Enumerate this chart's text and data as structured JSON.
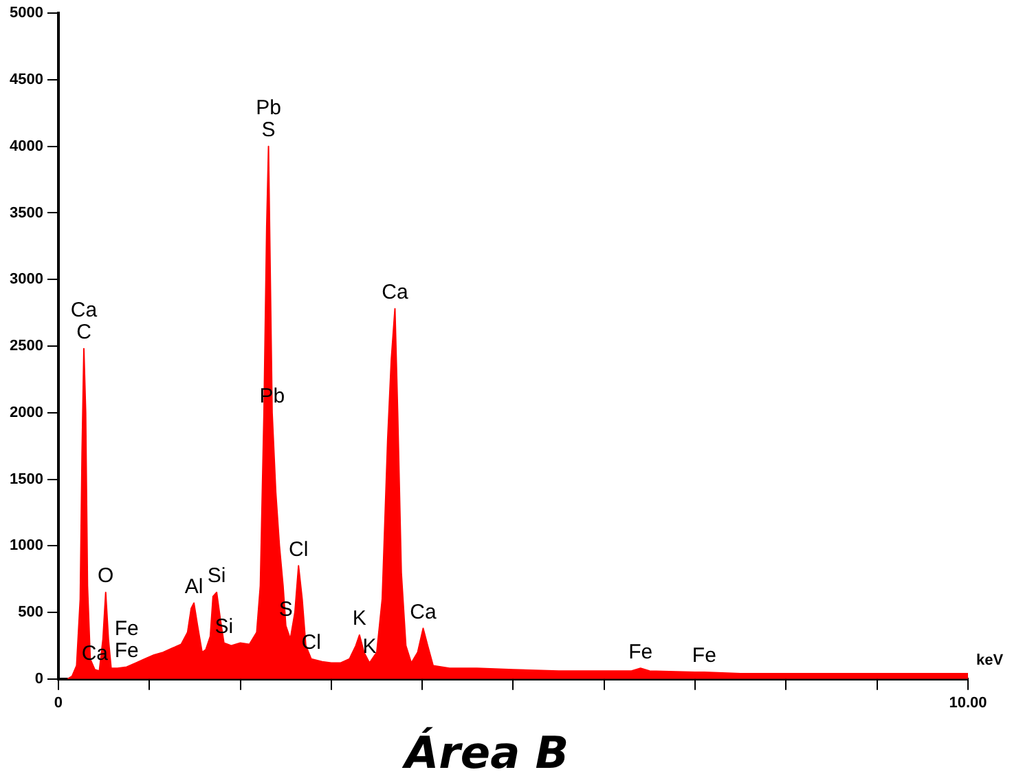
{
  "chart_data": {
    "type": "area",
    "title": "Área B",
    "xlabel": "keV",
    "color": "#ff0000",
    "grid": false,
    "legend": false,
    "marker": "none",
    "xlim": [
      0,
      10
    ],
    "xticks": [
      0,
      {
        "value": 1,
        "label": null
      },
      {
        "value": 2,
        "label": null
      },
      {
        "value": 3,
        "label": null
      },
      {
        "value": 4,
        "label": null
      },
      {
        "value": 5,
        "label": null
      },
      {
        "value": 6,
        "label": null
      },
      {
        "value": 7,
        "label": null
      },
      {
        "value": 8,
        "label": null
      },
      {
        "value": 9,
        "label": null
      },
      {
        "value": 10,
        "label": "10.00"
      }
    ],
    "ylim": [
      0,
      5000
    ],
    "yticks": [
      0,
      500,
      1000,
      1500,
      2000,
      2500,
      3000,
      3500,
      4000,
      4500,
      5000
    ],
    "x": [
      0.1,
      0.15,
      0.2,
      0.24,
      0.26,
      0.28,
      0.3,
      0.32,
      0.35,
      0.4,
      0.45,
      0.49,
      0.52,
      0.55,
      0.58,
      0.65,
      0.75,
      0.85,
      0.95,
      1.05,
      1.15,
      1.25,
      1.35,
      1.42,
      1.46,
      1.49,
      1.53,
      1.58,
      1.62,
      1.67,
      1.7,
      1.74,
      1.78,
      1.82,
      1.9,
      2.0,
      2.1,
      2.18,
      2.22,
      2.26,
      2.29,
      2.31,
      2.33,
      2.35,
      2.39,
      2.43,
      2.47,
      2.5,
      2.55,
      2.6,
      2.64,
      2.68,
      2.72,
      2.78,
      2.9,
      3.0,
      3.1,
      3.2,
      3.27,
      3.31,
      3.36,
      3.42,
      3.5,
      3.56,
      3.62,
      3.66,
      3.7,
      3.73,
      3.77,
      3.82,
      3.88,
      3.95,
      4.01,
      4.06,
      4.12,
      4.3,
      4.6,
      5.0,
      5.5,
      6.0,
      6.3,
      6.4,
      6.5,
      7.0,
      7.1,
      7.5,
      8.0,
      9.0,
      10.0
    ],
    "values": [
      0,
      20,
      100,
      600,
      1700,
      2480,
      2000,
      700,
      150,
      70,
      60,
      300,
      650,
      300,
      80,
      80,
      90,
      120,
      150,
      180,
      200,
      230,
      260,
      350,
      530,
      570,
      400,
      200,
      220,
      320,
      620,
      650,
      450,
      270,
      250,
      270,
      260,
      350,
      700,
      2000,
      3400,
      4000,
      3000,
      2000,
      1400,
      1000,
      700,
      400,
      300,
      500,
      850,
      600,
      250,
      150,
      130,
      120,
      120,
      150,
      250,
      330,
      200,
      120,
      200,
      600,
      1800,
      2400,
      2780,
      2000,
      800,
      250,
      120,
      200,
      380,
      250,
      100,
      80,
      80,
      70,
      60,
      60,
      60,
      80,
      60,
      50,
      50,
      40,
      40,
      40,
      40
    ],
    "annotations": [
      {
        "text": "C",
        "x": 0.28,
        "y": 2480
      },
      {
        "text": "Ca",
        "x": 0.28,
        "y": 2480
      },
      {
        "text": "O",
        "x": 0.52,
        "y": 650
      },
      {
        "text": "Fe",
        "x": 0.75,
        "y": 90
      },
      {
        "text": "Fe",
        "x": 0.75,
        "y": 90
      },
      {
        "text": "Ca",
        "x": 0.4,
        "y": 70
      },
      {
        "text": "Al",
        "x": 1.49,
        "y": 570
      },
      {
        "text": "Si",
        "x": 1.74,
        "y": 650
      },
      {
        "text": "Si",
        "x": 1.82,
        "y": 270
      },
      {
        "text": "S",
        "x": 2.31,
        "y": 4000
      },
      {
        "text": "Pb",
        "x": 2.31,
        "y": 4000
      },
      {
        "text": "Pb",
        "x": 2.35,
        "y": 2000
      },
      {
        "text": "S",
        "x": 2.5,
        "y": 400
      },
      {
        "text": "Cl",
        "x": 2.64,
        "y": 850
      },
      {
        "text": "Cl",
        "x": 2.78,
        "y": 150
      },
      {
        "text": "K",
        "x": 3.31,
        "y": 330
      },
      {
        "text": "K",
        "x": 3.42,
        "y": 120
      },
      {
        "text": "Ca",
        "x": 3.7,
        "y": 2780
      },
      {
        "text": "Ca",
        "x": 4.01,
        "y": 380
      },
      {
        "text": "Fe",
        "x": 6.4,
        "y": 80
      },
      {
        "text": "Fe",
        "x": 7.1,
        "y": 50
      }
    ]
  }
}
